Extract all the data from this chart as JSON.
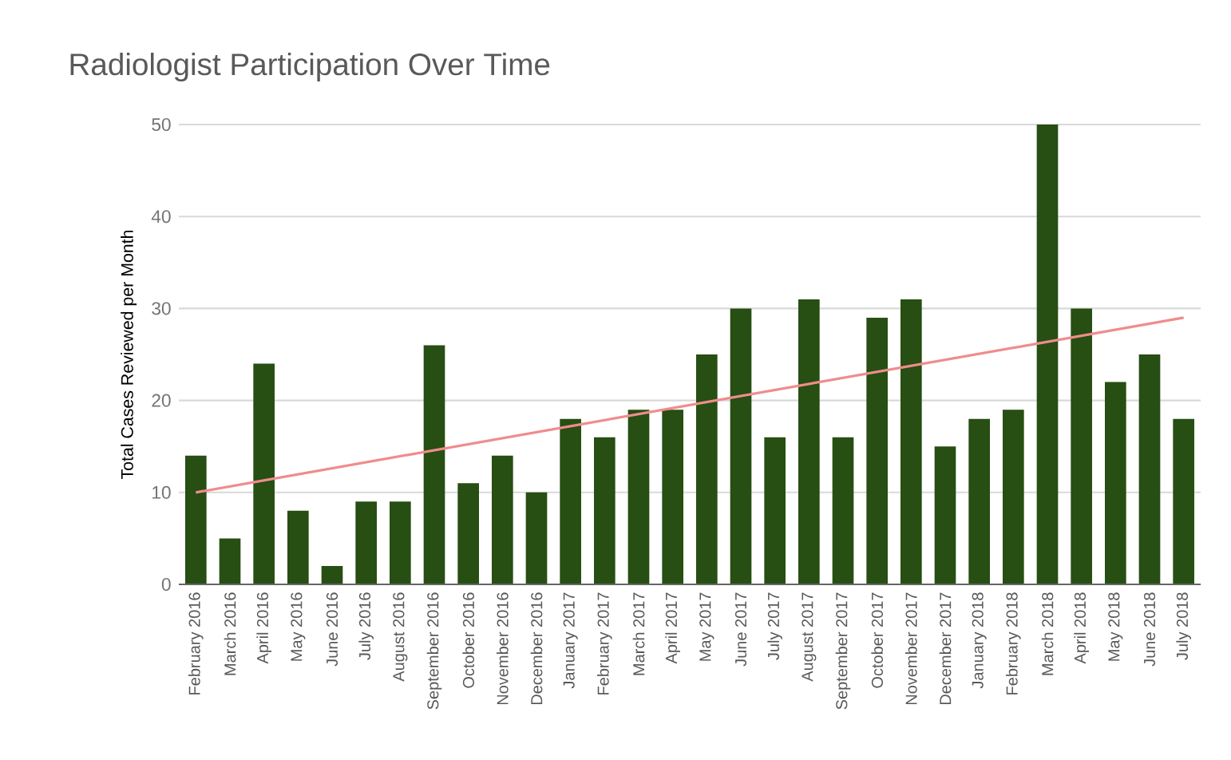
{
  "chart_data": {
    "type": "bar",
    "title": "Radiologist Participation Over Time",
    "ylabel": "Total Cases Reviewed per Month",
    "categories": [
      "February 2016",
      "March 2016",
      "April 2016",
      "May 2016",
      "June 2016",
      "July 2016",
      "August 2016",
      "September 2016",
      "October 2016",
      "November 2016",
      "December 2016",
      "January 2017",
      "February 2017",
      "March 2017",
      "April 2017",
      "May 2017",
      "June 2017",
      "July 2017",
      "August 2017",
      "September 2017",
      "October 2017",
      "November 2017",
      "December 2017",
      "January 2018",
      "February 2018",
      "March 2018",
      "April 2018",
      "May 2018",
      "June 2018",
      "July 2018"
    ],
    "series": [
      {
        "color": "#274e13",
        "values": [
          14,
          5,
          24,
          8,
          2,
          9,
          9,
          26,
          11,
          14,
          10,
          18,
          16,
          19,
          19,
          25,
          30,
          16,
          31,
          16,
          29,
          31,
          15,
          18,
          19,
          50,
          30,
          22,
          25,
          18
        ]
      },
      {
        "type": "line",
        "color": "#f08c8c",
        "x": [
          "February 2016",
          "July 2018"
        ],
        "values": [
          10,
          29
        ]
      }
    ],
    "ylim": [
      0,
      50
    ],
    "yticks": [
      0,
      10,
      20,
      30,
      40,
      50
    ],
    "grid": "y"
  }
}
